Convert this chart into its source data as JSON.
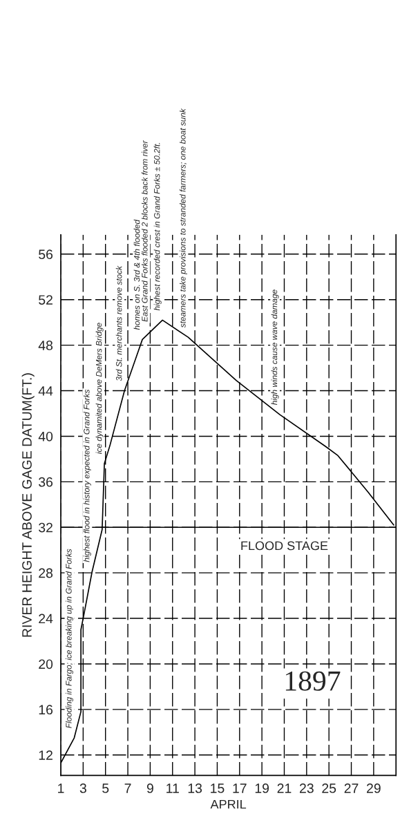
{
  "chart_data": {
    "type": "line",
    "xlabel": "APRIL",
    "ylabel": "RIVER HEIGHT ABOVE GAGE DATUM(FT.)",
    "x": [
      1,
      2.2,
      2.8,
      2.8,
      3.1,
      3.8,
      4.7,
      4.9,
      5.4,
      6.7,
      8.3,
      10.1,
      12.4,
      16.7,
      20.6,
      24.7,
      25.8,
      28.5,
      30.8
    ],
    "series": [
      {
        "color": "#000000",
        "values": [
          11.3,
          13.5,
          15.8,
          23,
          24.5,
          28.1,
          31.8,
          37.6,
          39.2,
          44,
          48.5,
          50.2,
          48.7,
          44.9,
          41.9,
          39.1,
          38.3,
          35.1,
          32.2
        ]
      }
    ],
    "xlim": [
      1,
      31
    ],
    "ylim": [
      10.2,
      57.7
    ],
    "xticks": [
      1,
      3,
      5,
      7,
      9,
      11,
      13,
      15,
      17,
      19,
      21,
      23,
      25,
      27,
      29
    ],
    "yticks": [
      12,
      16,
      20,
      24,
      28,
      32,
      36,
      40,
      44,
      48,
      52,
      56
    ],
    "grid": true,
    "line_style": "solid",
    "marker": "none",
    "ref_lines": [
      {
        "axis": "y",
        "value": 32,
        "label": "FLOOD STAGE",
        "color": "#000000"
      }
    ],
    "annotations": [
      {
        "text": "Flooding in Fargo; ice breaking up in Grand Forks",
        "x": 2.2,
        "y": 13.5
      },
      {
        "text": "highest flood in history expected in Grand Forks",
        "x": 3.8,
        "y": 28.1
      },
      {
        "text": "ice dynamited above DeMers Bridge",
        "x": 4.9,
        "y": 37.6
      },
      {
        "text": "3rd St. merchants remove stock",
        "x": 6.7,
        "y": 44
      },
      {
        "text": "homes on S. 3rd & 4th flooded",
        "x": 8.3,
        "y": 48.5
      },
      {
        "text": "East Grand Forks flooded 2 blocks back from river",
        "x": 9,
        "y": 49.2
      },
      {
        "text": "highest recorded crest in Grand Forks ± 50.2ft.",
        "x": 10.1,
        "y": 50.2
      },
      {
        "text": "steamers take provisions to stranded farmers; one boat sunk",
        "x": 12.4,
        "y": 48.7
      },
      {
        "text": "high winds cause wave damage",
        "x": 20.6,
        "y": 41.9
      },
      "1897"
    ]
  }
}
